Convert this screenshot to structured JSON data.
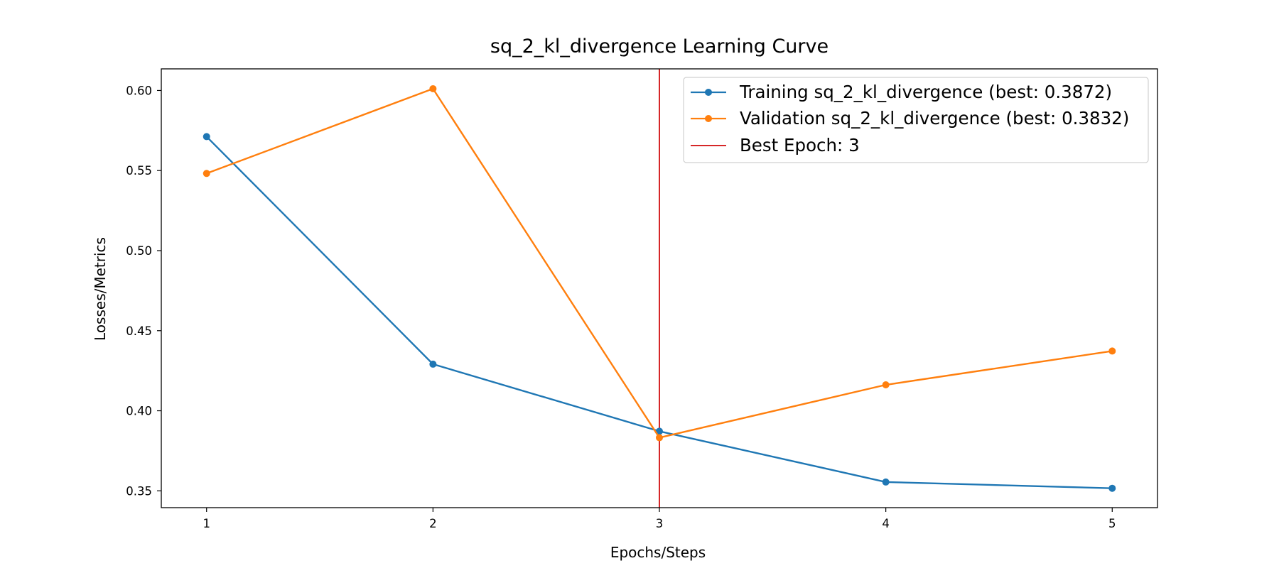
{
  "chart_data": {
    "type": "line",
    "title": "sq_2_kl_divergence Learning Curve",
    "xlabel": "Epochs/Steps",
    "ylabel": "Losses/Metrics",
    "x": [
      1,
      2,
      3,
      4,
      5
    ],
    "xticks": [
      "1",
      "2",
      "3",
      "4",
      "5"
    ],
    "yticks": [
      "0.35",
      "0.40",
      "0.45",
      "0.50",
      "0.55",
      "0.60"
    ],
    "xlim": [
      0.8,
      5.2
    ],
    "ylim": [
      0.3395,
      0.6135
    ],
    "grid": false,
    "legend_position": "top-right",
    "series": [
      {
        "name": "Training sq_2_kl_divergence (best: 0.3872)",
        "color": "#1f77b4",
        "values": [
          0.5712,
          0.4291,
          0.3872,
          0.3555,
          0.3516
        ]
      },
      {
        "name": "Validation sq_2_kl_divergence (best: 0.3832)",
        "color": "#ff7f0e",
        "values": [
          0.5482,
          0.6011,
          0.3832,
          0.4162,
          0.4373
        ]
      }
    ],
    "best_epoch": {
      "x": 3,
      "label": "Best Epoch: 3",
      "color": "#d62728"
    }
  }
}
